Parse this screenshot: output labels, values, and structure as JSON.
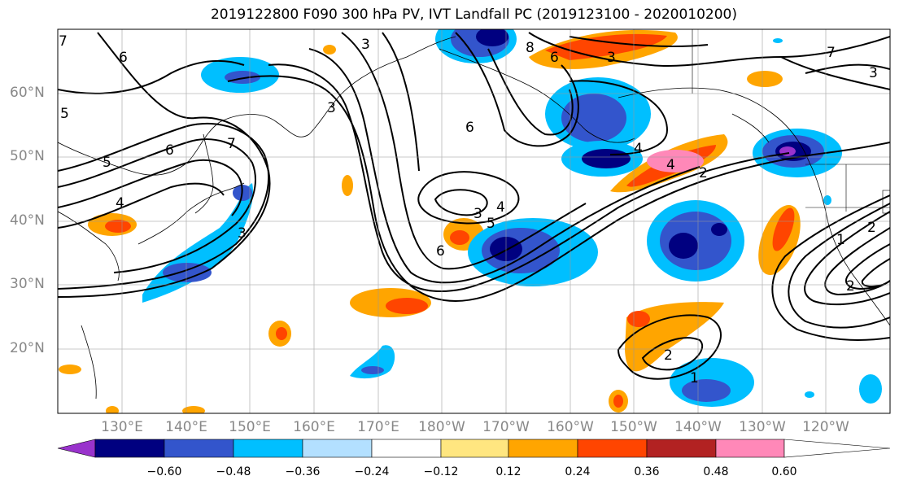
{
  "title": "2019122800 F090 300 hPa PV, IVT Landfall PC (2019123100 - 2020010200)",
  "lat_labels": [
    "60°N",
    "50°N",
    "40°N",
    "30°N",
    "20°N"
  ],
  "lon_labels": [
    "130°E",
    "140°E",
    "150°E",
    "160°E",
    "170°E",
    "180°W",
    "170°W",
    "160°W",
    "150°W",
    "140°W",
    "130°W",
    "120°W"
  ],
  "colorbar": {
    "colors": [
      "#9933cc",
      "#000080",
      "#3355cc",
      "#00bfff",
      "#b3e0ff",
      "#ffffff",
      "#ffe680",
      "#ffa500",
      "#ff4500",
      "#b22222",
      "#ff88b8"
    ],
    "ticks": [
      "−0.60",
      "−0.48",
      "−0.36",
      "−0.24",
      "−0.12",
      "0.12",
      "0.24",
      "0.36",
      "0.48",
      "0.60"
    ]
  },
  "contour_labels": [
    "7",
    "6",
    "5",
    "5",
    "4",
    "3",
    "3",
    "8",
    "6",
    "3",
    "3",
    "6",
    "5",
    "3",
    "4",
    "6",
    "6",
    "7",
    "4",
    "4",
    "2",
    "2",
    "1",
    "3",
    "2",
    "1",
    "7",
    "2"
  ]
}
